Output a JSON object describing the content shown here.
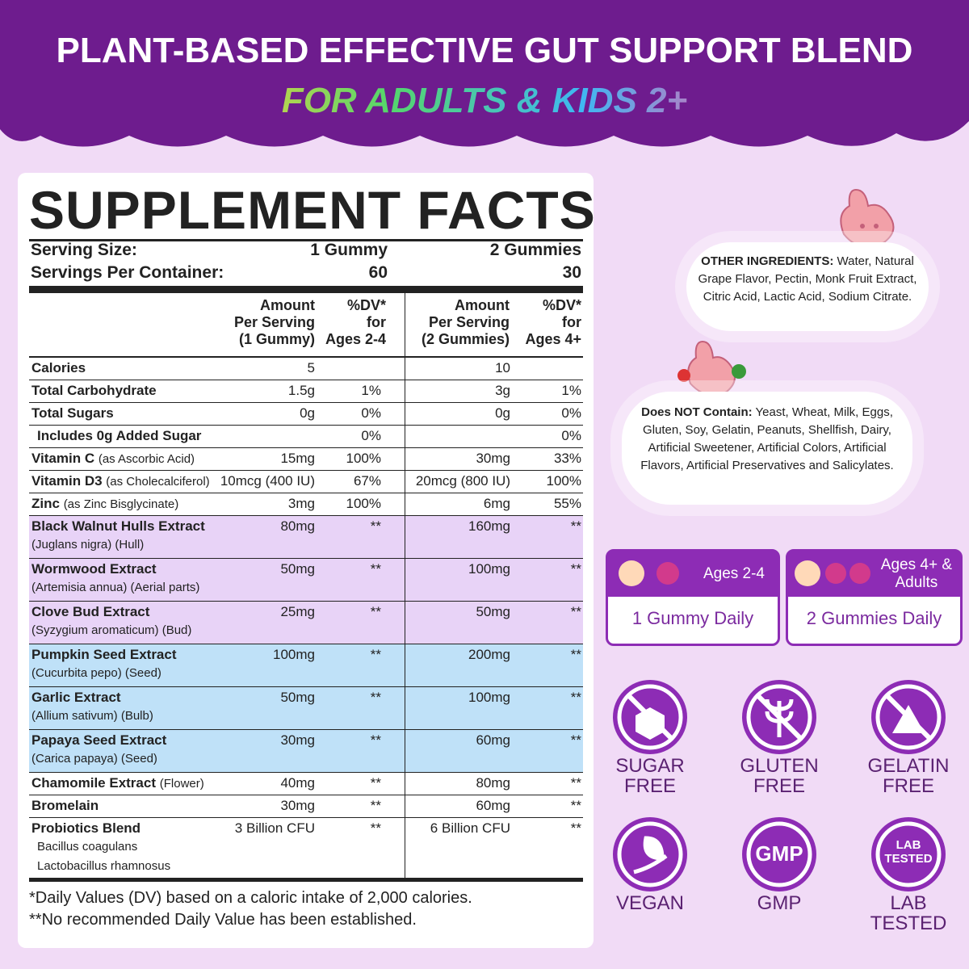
{
  "header": {
    "title": "PLANT-BASED EFFECTIVE GUT SUPPORT BLEND",
    "subtitle": "FOR ADULTS & KIDS 2+"
  },
  "facts": {
    "title": "SUPPLEMENT FACTS",
    "serving": [
      [
        "Serving Size:",
        "1 Gummy",
        "2 Gummies"
      ],
      [
        "Servings Per Container:",
        "60",
        "30"
      ]
    ],
    "columns": [
      "Amount\nPer Serving\n(1 Gummy)",
      "%DV*\nfor\nAges 2-4",
      "Amount\nPer Serving\n(2 Gummies)",
      "%DV*\nfor\nAges 4+"
    ],
    "rows": [
      {
        "name": "Calories",
        "a1": "5",
        "a2": "10"
      },
      {
        "name": "Total Carbohydrate",
        "a1": "1.5g",
        "d1": "1%",
        "a2": "3g",
        "d2": "1%"
      },
      {
        "name": "Total Sugars",
        "a1": "0g",
        "d1": "0%",
        "a2": "0g",
        "d2": "0%"
      },
      {
        "name": "Includes 0g Added Sugar",
        "indent": true,
        "d1": "0%",
        "d2": "0%"
      },
      {
        "name": "Vitamin C",
        "note": "(as Ascorbic Acid)",
        "a1": "15mg",
        "d1": "100%",
        "a2": "30mg",
        "d2": "33%"
      },
      {
        "name": "Vitamin D3",
        "note": "(as Cholecalciferol)",
        "a1": "10mcg (400 IU)",
        "d1": "67%",
        "a2": "20mcg (800 IU)",
        "d2": "100%"
      },
      {
        "name": "Zinc",
        "note": "(as Zinc Bisglycinate)",
        "a1": "3mg",
        "d1": "100%",
        "a2": "6mg",
        "d2": "55%"
      },
      {
        "name": "Black Walnut Hulls Extract",
        "sub": [
          "(Juglans nigra) (Hull)"
        ],
        "a1": "80mg",
        "d1": "**",
        "a2": "160mg",
        "d2": "**",
        "bg": "#e8d3f7"
      },
      {
        "name": "Wormwood Extract",
        "sub": [
          "(Artemisia annua) (Aerial parts)"
        ],
        "a1": "50mg",
        "d1": "**",
        "a2": "100mg",
        "d2": "**",
        "bg": "#e8d3f7"
      },
      {
        "name": "Clove Bud Extract",
        "sub": [
          "(Syzygium aromaticum) (Bud)"
        ],
        "a1": "25mg",
        "d1": "**",
        "a2": "50mg",
        "d2": "**",
        "bg": "#e8d3f7"
      },
      {
        "name": "Pumpkin Seed Extract",
        "sub": [
          "(Cucurbita pepo) (Seed)"
        ],
        "a1": "100mg",
        "d1": "**",
        "a2": "200mg",
        "d2": "**",
        "bg": "#bfe1f8"
      },
      {
        "name": "Garlic Extract",
        "sub": [
          "(Allium sativum) (Bulb)"
        ],
        "a1": "50mg",
        "d1": "**",
        "a2": "100mg",
        "d2": "**",
        "bg": "#bfe1f8"
      },
      {
        "name": "Papaya Seed Extract",
        "sub": [
          "(Carica papaya) (Seed)"
        ],
        "a1": "30mg",
        "d1": "**",
        "a2": "60mg",
        "d2": "**",
        "bg": "#bfe1f8"
      },
      {
        "name": "Chamomile Extract",
        "note": "(Flower)",
        "a1": "40mg",
        "d1": "**",
        "a2": "80mg",
        "d2": "**"
      },
      {
        "name": "Bromelain",
        "a1": "30mg",
        "d1": "**",
        "a2": "60mg",
        "d2": "**"
      },
      {
        "name": "Probiotics Blend",
        "sub": [
          "Bacillus coagulans",
          "Lactobacillus rhamnosus"
        ],
        "a1": "3 Billion CFU",
        "d1": "**",
        "a2": "6 Billion CFU",
        "d2": "**"
      }
    ],
    "footnotes": [
      "*Daily Values (DV) based on a caloric intake of 2,000 calories.",
      "**No recommended Daily Value has been established."
    ]
  },
  "other_ingredients": {
    "label": "OTHER INGREDIENTS:",
    "text": "Water, Natural Grape Flavor, Pectin, Monk Fruit Extract, Citric Acid, Lactic Acid, Sodium Citrate."
  },
  "does_not_contain": {
    "label": "Does NOT Contain:",
    "text": "Yeast, Wheat, Milk, Eggs, Gluten, Soy, Gelatin, Peanuts, Shellfish, Dairy, Artificial Sweetener, Artificial Colors, Artificial Flavors, Artificial Preservatives and Salicylates."
  },
  "dosage": [
    {
      "age": "Ages 2-4",
      "dose": "1 Gummy Daily"
    },
    {
      "age": "Ages 4+ &\nAdults",
      "dose": "2 Gummies Daily"
    }
  ],
  "badges": [
    {
      "label": "SUGAR\nFREE"
    },
    {
      "label": "GLUTEN\nFREE"
    },
    {
      "label": "GELATIN\nFREE"
    },
    {
      "label": "VEGAN"
    },
    {
      "label": "GMP",
      "icon_text": "GMP"
    },
    {
      "label": "LAB\nTESTED",
      "icon_text": "LAB\nTESTED"
    }
  ]
}
